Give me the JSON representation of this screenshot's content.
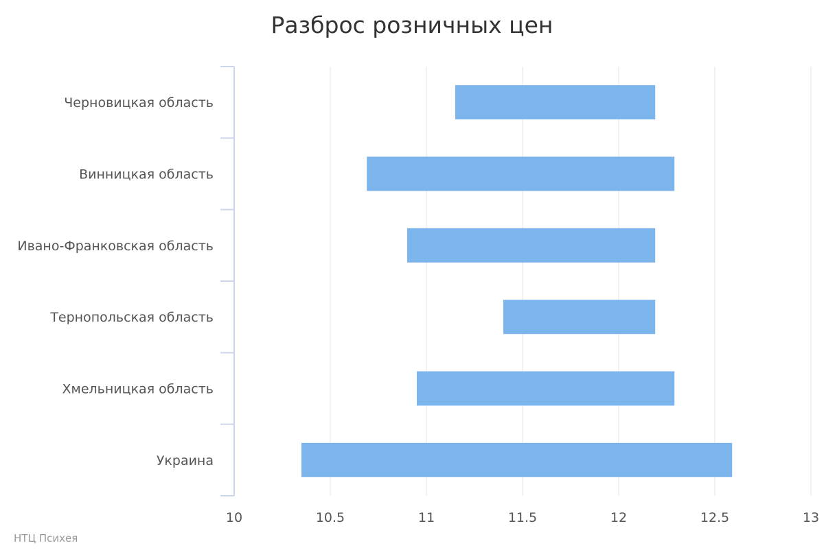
{
  "chart_data": {
    "type": "bar",
    "orientation": "horizontal",
    "range_bars": true,
    "title": "Разброс розничных цен",
    "categories": [
      "Черновицкая область",
      "Винницкая область",
      "Ивано-Франковская область",
      "Тернопольская область",
      "Хмельницкая область",
      "Украина"
    ],
    "series": [
      {
        "ranges": [
          [
            11.15,
            12.19
          ],
          [
            10.69,
            12.29
          ],
          [
            10.9,
            12.19
          ],
          [
            11.4,
            12.19
          ],
          [
            10.95,
            12.29
          ],
          [
            10.35,
            12.59
          ]
        ]
      }
    ],
    "xlim": [
      10,
      13
    ],
    "xticks": [
      "10",
      "10.5",
      "11",
      "11.5",
      "12",
      "12.5",
      "13"
    ],
    "xtick_values": [
      10,
      10.5,
      11,
      11.5,
      12,
      12.5,
      13
    ],
    "grid": true,
    "legend": false,
    "bar_color": "#7cb5ec"
  },
  "credit": "НТЦ Психея"
}
